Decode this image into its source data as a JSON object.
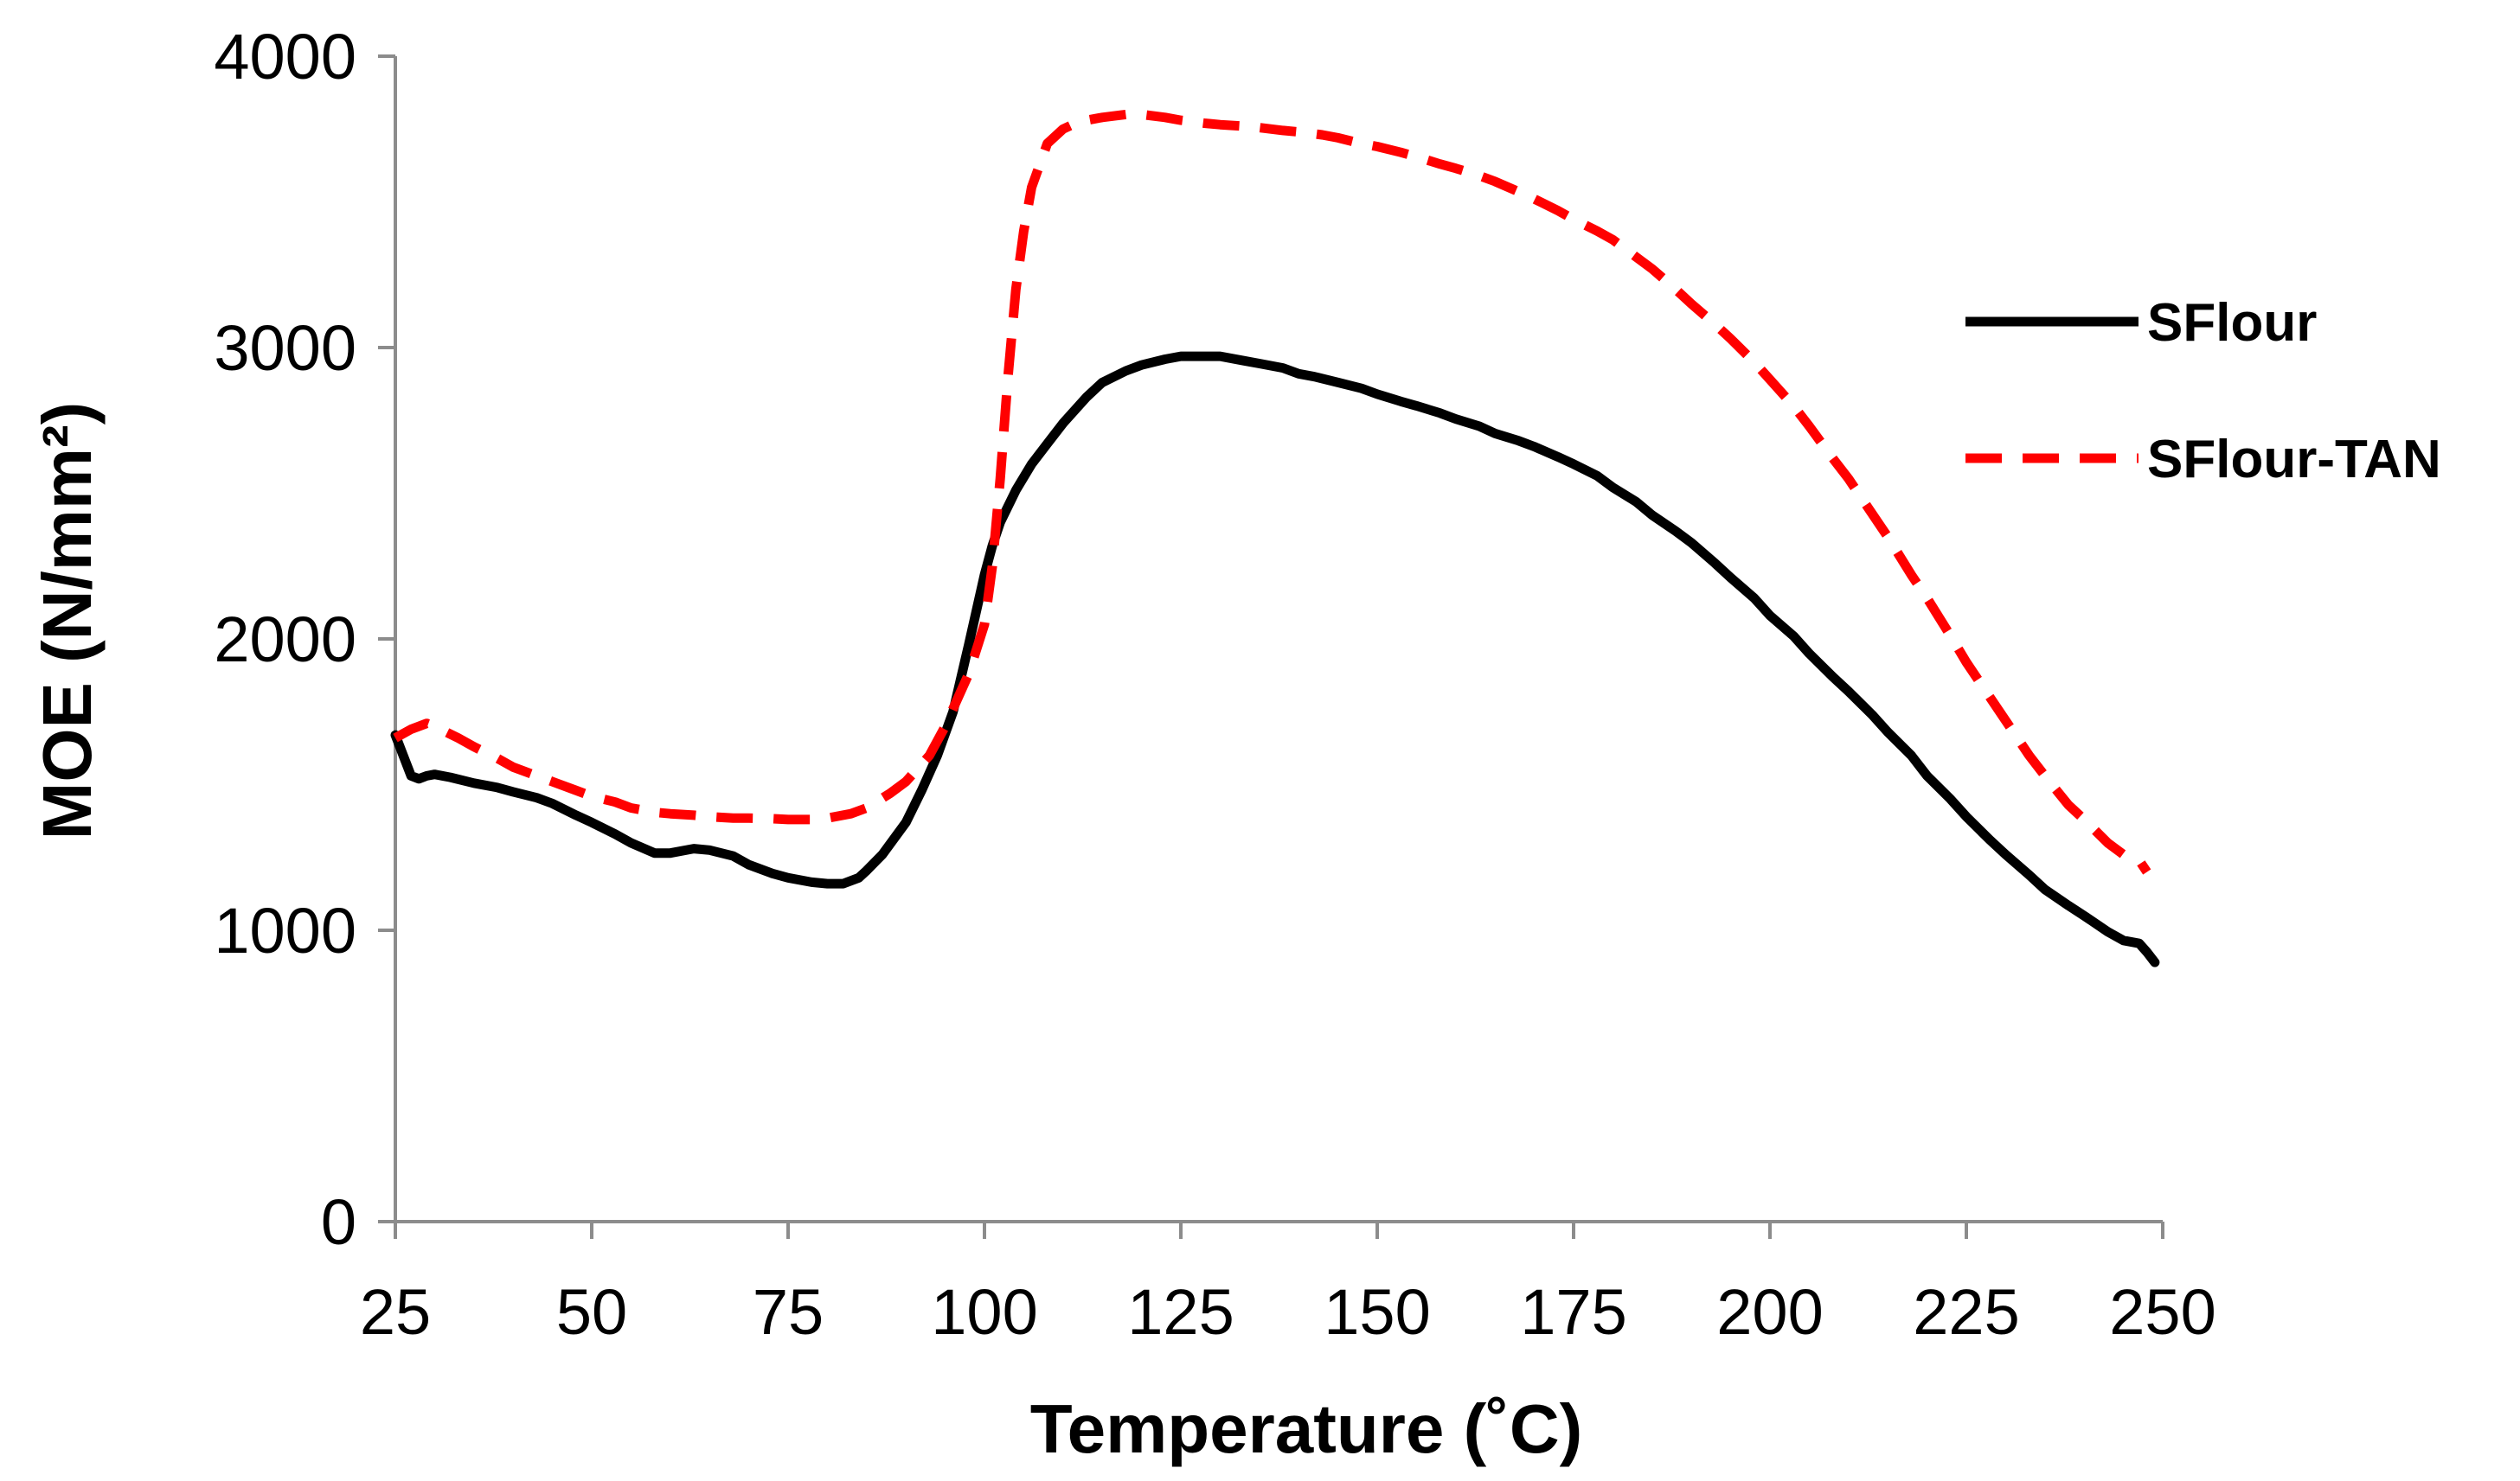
{
  "chart_data": {
    "type": "line",
    "title": "",
    "xlabel": "Temperature (˚C)",
    "ylabel": "MOE (N/mm²)",
    "xlim": [
      25,
      250
    ],
    "ylim": [
      0,
      4000
    ],
    "xticks": [
      25,
      50,
      75,
      100,
      125,
      150,
      175,
      200,
      225,
      250
    ],
    "yticks": [
      0,
      1000,
      2000,
      3000,
      4000
    ],
    "grid": false,
    "legend_position": "right",
    "series": [
      {
        "name": "SFlour",
        "color": "#000000",
        "style": "solid",
        "x": [
          25,
          26,
          27,
          28,
          29,
          30,
          32,
          35,
          38,
          40,
          43,
          45,
          48,
          50,
          53,
          55,
          58,
          60,
          63,
          65,
          68,
          70,
          73,
          75,
          78,
          80,
          82,
          84,
          85,
          87,
          90,
          92,
          94,
          96,
          98,
          100,
          101,
          102,
          104,
          106,
          108,
          110,
          113,
          115,
          118,
          120,
          123,
          125,
          128,
          130,
          133,
          135,
          138,
          140,
          142,
          145,
          148,
          150,
          153,
          155,
          158,
          160,
          163,
          165,
          168,
          170,
          173,
          175,
          178,
          180,
          183,
          185,
          188,
          190,
          193,
          195,
          198,
          200,
          203,
          205,
          208,
          210,
          213,
          215,
          218,
          220,
          223,
          225,
          228,
          230,
          233,
          235,
          238,
          240,
          243,
          245,
          247,
          248,
          249
        ],
        "values": [
          1670,
          1600,
          1530,
          1520,
          1530,
          1535,
          1525,
          1505,
          1490,
          1475,
          1455,
          1435,
          1395,
          1370,
          1330,
          1300,
          1265,
          1265,
          1280,
          1275,
          1255,
          1225,
          1195,
          1180,
          1165,
          1160,
          1160,
          1180,
          1205,
          1260,
          1370,
          1480,
          1600,
          1750,
          1980,
          2220,
          2320,
          2400,
          2510,
          2600,
          2670,
          2740,
          2830,
          2880,
          2920,
          2940,
          2960,
          2970,
          2970,
          2970,
          2955,
          2945,
          2930,
          2910,
          2900,
          2880,
          2860,
          2840,
          2815,
          2800,
          2775,
          2755,
          2730,
          2705,
          2680,
          2660,
          2625,
          2600,
          2560,
          2520,
          2470,
          2425,
          2370,
          2330,
          2260,
          2210,
          2140,
          2080,
          2010,
          1950,
          1870,
          1820,
          1740,
          1680,
          1600,
          1530,
          1450,
          1390,
          1310,
          1260,
          1190,
          1140,
          1085,
          1050,
          995,
          965,
          955,
          925,
          890
        ]
      },
      {
        "name": "SFlour-TAN",
        "color": "#ff0000",
        "style": "dashed",
        "x": [
          25,
          27,
          29,
          30,
          33,
          35,
          38,
          40,
          43,
          45,
          48,
          50,
          53,
          55,
          58,
          60,
          63,
          65,
          68,
          70,
          73,
          75,
          78,
          80,
          83,
          85,
          88,
          90,
          93,
          95,
          98,
          100,
          101,
          102,
          103,
          104,
          105,
          106,
          108,
          110,
          112,
          115,
          118,
          120,
          123,
          125,
          128,
          130,
          133,
          135,
          138,
          140,
          143,
          145,
          148,
          150,
          153,
          155,
          158,
          160,
          163,
          165,
          168,
          170,
          173,
          175,
          178,
          180,
          183,
          185,
          188,
          190,
          193,
          195,
          198,
          200,
          203,
          205,
          208,
          210,
          213,
          215,
          218,
          220,
          223,
          225,
          228,
          230,
          233,
          235,
          238,
          240,
          243,
          245,
          247,
          248
        ],
        "values": [
          1660,
          1690,
          1710,
          1700,
          1660,
          1630,
          1590,
          1560,
          1530,
          1510,
          1480,
          1460,
          1440,
          1420,
          1405,
          1400,
          1395,
          1390,
          1385,
          1385,
          1383,
          1380,
          1380,
          1385,
          1400,
          1420,
          1470,
          1510,
          1600,
          1700,
          1880,
          2050,
          2250,
          2550,
          2900,
          3200,
          3400,
          3550,
          3700,
          3750,
          3775,
          3790,
          3800,
          3800,
          3790,
          3780,
          3770,
          3765,
          3760,
          3755,
          3745,
          3740,
          3730,
          3720,
          3700,
          3690,
          3670,
          3655,
          3630,
          3615,
          3590,
          3570,
          3535,
          3510,
          3470,
          3440,
          3400,
          3370,
          3310,
          3270,
          3200,
          3150,
          3080,
          3030,
          2950,
          2890,
          2800,
          2730,
          2620,
          2550,
          2430,
          2350,
          2220,
          2140,
          2010,
          1920,
          1800,
          1720,
          1600,
          1530,
          1430,
          1380,
          1300,
          1260,
          1240,
          1200
        ]
      }
    ]
  }
}
